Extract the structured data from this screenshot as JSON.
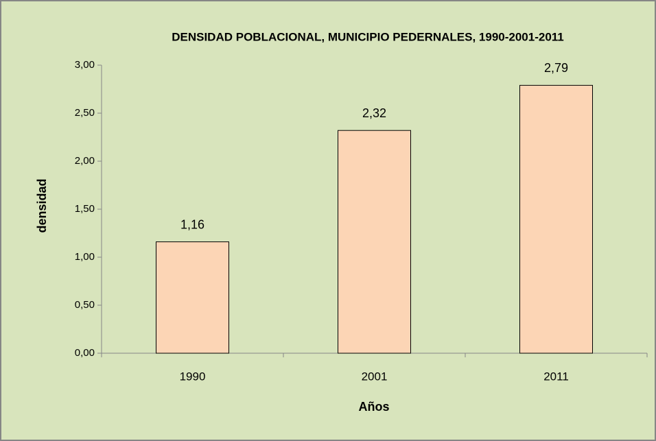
{
  "chart_data": {
    "type": "bar",
    "title": "DENSIDAD POBLACIONAL, MUNICIPIO PEDERNALES, 1990-2001-2011",
    "x_label": "Años",
    "y_label": "densidad",
    "categories": [
      "1990",
      "2001",
      "2011"
    ],
    "values": [
      1.16,
      2.32,
      2.79
    ],
    "value_labels": [
      "1,16",
      "2,32",
      "2,79"
    ],
    "color": "#fcd5b5",
    "ylim": [
      0,
      3
    ],
    "yticks": [
      {
        "value": 0,
        "label": "0,00"
      },
      {
        "value": 0.5,
        "label": "0,50"
      },
      {
        "value": 1,
        "label": "1,00"
      },
      {
        "value": 1.5,
        "label": "1,50"
      },
      {
        "value": 2,
        "label": "2,00"
      },
      {
        "value": 2.5,
        "label": "2,50"
      },
      {
        "value": 3,
        "label": "3,00"
      }
    ],
    "grid": false
  }
}
